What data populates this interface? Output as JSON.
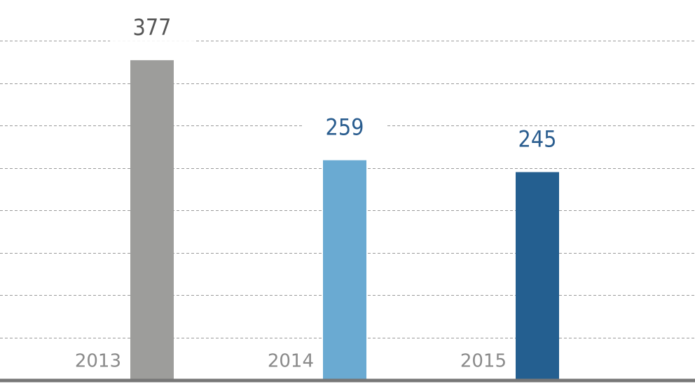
{
  "chart_data": {
    "type": "bar",
    "categories": [
      "2013",
      "2014",
      "2015"
    ],
    "values": [
      377,
      259,
      245
    ],
    "colors": [
      "#9d9d9b",
      "#6aaad2",
      "#245f90"
    ],
    "ylim": [
      0,
      448
    ],
    "yticks": [
      50,
      100,
      150,
      200,
      250,
      300,
      350,
      400
    ],
    "grid": true,
    "show_tick_labels": false
  }
}
